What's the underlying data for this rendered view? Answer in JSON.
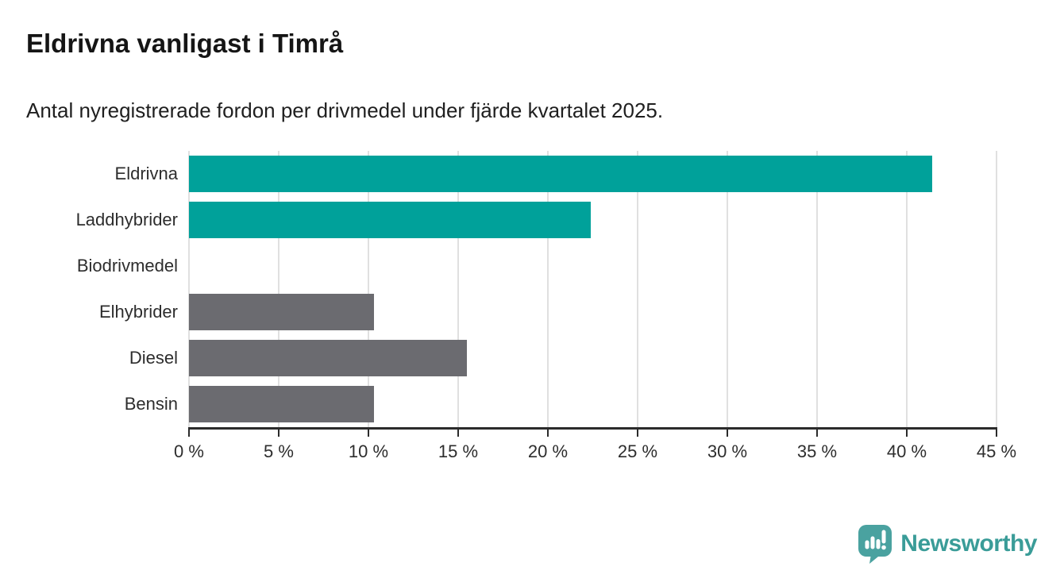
{
  "header": {
    "title": "Eldrivna vanligast i Timrå",
    "subtitle": "Antal nyregistrerade fordon per drivmedel under fjärde kvartalet 2025."
  },
  "chart_data": {
    "type": "bar",
    "orientation": "horizontal",
    "categories": [
      "Eldrivna",
      "Laddhybrider",
      "Biodrivmedel",
      "Elhybrider",
      "Diesel",
      "Bensin"
    ],
    "values": [
      41.4,
      22.4,
      0,
      10.3,
      15.5,
      10.3
    ],
    "unit": "%",
    "xlim": [
      0,
      45
    ],
    "xticks": [
      0,
      5,
      10,
      15,
      20,
      25,
      30,
      35,
      40,
      45
    ],
    "xtick_labels": [
      "0 %",
      "5 %",
      "10 %",
      "15 %",
      "20 %",
      "25 %",
      "30 %",
      "35 %",
      "40 %",
      "45 %"
    ],
    "bar_colors": [
      "#00a19a",
      "#00a19a",
      "#6b6b70",
      "#6b6b70",
      "#6b6b70",
      "#6b6b70"
    ],
    "colors": {
      "highlight": "#00a19a",
      "default": "#6b6b70",
      "gridline": "#e0e0e0",
      "axis": "#2b2b2b"
    },
    "grid": true,
    "legend": false,
    "title": "Eldrivna vanligast i Timrå",
    "xlabel": "",
    "ylabel": ""
  },
  "branding": {
    "logo_text": "Newsworthy",
    "logo_color": "#3a9c98",
    "logo_icon": "speech-bubble-bar-chart"
  }
}
